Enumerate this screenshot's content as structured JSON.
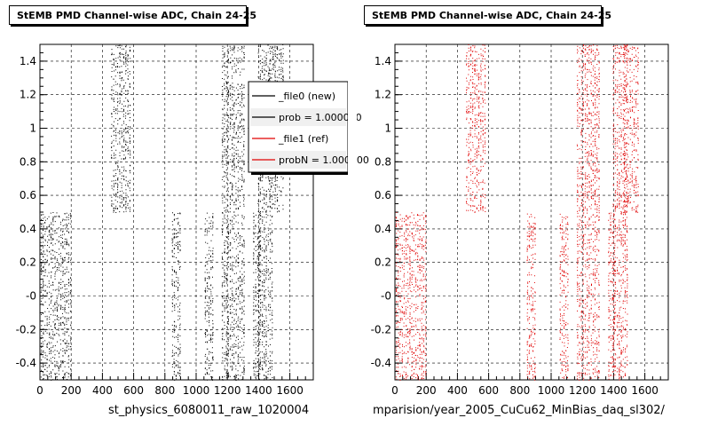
{
  "chart_data": [
    {
      "type": "scatter",
      "title": "StEMB PMD Channel-wise ADC, Chain 24-25",
      "xlabel": "st_physics_6080011_raw_1020004",
      "ylabel": "",
      "xlim": [
        0,
        1750
      ],
      "ylim": [
        -0.5,
        1.5
      ],
      "xticks": [
        "0",
        "200",
        "400",
        "600",
        "800",
        "1000",
        "1200",
        "1400",
        "1600"
      ],
      "yticks": [
        "-0.4",
        "-0.2",
        "-0",
        "0.2",
        "0.4",
        "0.6",
        "0.8",
        "1",
        "1.2",
        "1.4"
      ],
      "grid": true,
      "legend": {
        "placement": "top-right",
        "entries": [
          {
            "label": "_file0 (new)",
            "color": "#000000"
          },
          {
            "label": "prob = 1.000000",
            "color": "#000000"
          },
          {
            "label": "_file1 (ref)",
            "color": "#e00000"
          },
          {
            "label": "probN = 1.000000",
            "color": "#e00000"
          }
        ]
      },
      "series": [
        {
          "color": "#000000",
          "bands": [
            {
              "x": [
                0,
                200
              ],
              "y": [
                -0.5,
                0.5
              ]
            },
            {
              "x": [
                450,
                580
              ],
              "y": [
                0.5,
                1.5
              ]
            },
            {
              "x": [
                840,
                900
              ],
              "y": [
                -0.5,
                0.5
              ]
            },
            {
              "x": [
                1050,
                1110
              ],
              "y": [
                -0.5,
                0.5
              ]
            },
            {
              "x": [
                1160,
                1310
              ],
              "y": [
                -0.5,
                1.5
              ]
            },
            {
              "x": [
                1360,
                1410
              ],
              "y": [
                -0.5,
                0.5
              ]
            },
            {
              "x": [
                1390,
                1490
              ],
              "y": [
                -0.5,
                1.5
              ]
            },
            {
              "x": [
                1460,
                1560
              ],
              "y": [
                0.5,
                1.5
              ]
            }
          ]
        }
      ]
    },
    {
      "type": "scatter",
      "title": "StEMB PMD Channel-wise ADC, Chain 24-25",
      "xlabel": "mparision/year_2005_CuCu62_MinBias_daq_sl302/",
      "ylabel": "",
      "xlim": [
        0,
        1750
      ],
      "ylim": [
        -0.5,
        1.5
      ],
      "xticks": [
        "0",
        "200",
        "400",
        "600",
        "800",
        "1000",
        "1200",
        "1400",
        "1600"
      ],
      "yticks": [
        "-0.4",
        "-0.2",
        "-0",
        "0.2",
        "0.4",
        "0.6",
        "0.8",
        "1",
        "1.2",
        "1.4"
      ],
      "grid": true,
      "series": [
        {
          "color": "#e00000",
          "bands": [
            {
              "x": [
                0,
                200
              ],
              "y": [
                -0.5,
                0.5
              ]
            },
            {
              "x": [
                450,
                580
              ],
              "y": [
                0.5,
                1.5
              ]
            },
            {
              "x": [
                840,
                900
              ],
              "y": [
                -0.5,
                0.5
              ]
            },
            {
              "x": [
                1050,
                1110
              ],
              "y": [
                -0.5,
                0.5
              ]
            },
            {
              "x": [
                1160,
                1310
              ],
              "y": [
                -0.5,
                1.5
              ]
            },
            {
              "x": [
                1360,
                1410
              ],
              "y": [
                -0.5,
                0.5
              ]
            },
            {
              "x": [
                1390,
                1490
              ],
              "y": [
                -0.5,
                1.5
              ]
            },
            {
              "x": [
                1460,
                1560
              ],
              "y": [
                0.5,
                1.5
              ]
            }
          ]
        }
      ]
    }
  ]
}
